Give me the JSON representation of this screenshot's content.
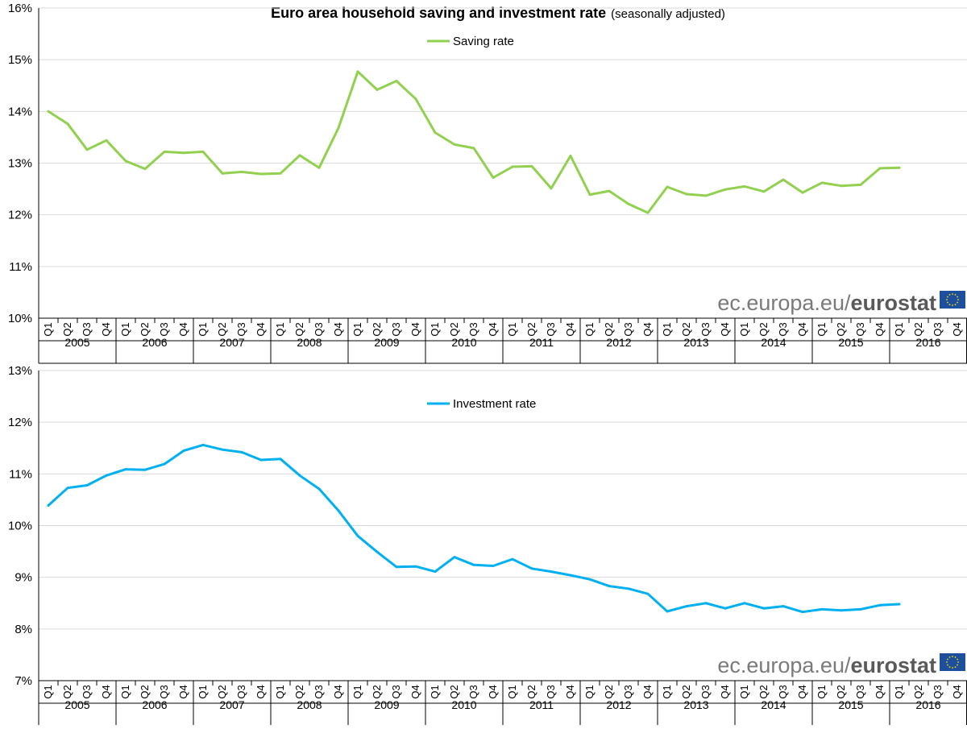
{
  "title": "Euro area household saving and investment rate",
  "subtitle": "(seasonally adjusted)",
  "watermark": {
    "prefix": "ec.europa.eu/",
    "brand": "eurostat"
  },
  "colors": {
    "saving": "#92d050",
    "investment": "#00b0f0",
    "grid": "#d9d9d9",
    "eu_blue": "#1d4f9c",
    "eu_star": "#ffdd00"
  },
  "chart_data": [
    {
      "type": "line",
      "legend_position": "top-center",
      "grid": true,
      "ylim": [
        10,
        16
      ],
      "ytick_labels": [
        "10%",
        "11%",
        "12%",
        "13%",
        "14%",
        "15%",
        "16%"
      ],
      "quarters": [
        "Q1",
        "Q2",
        "Q3",
        "Q4"
      ],
      "years": [
        "2005",
        "2006",
        "2007",
        "2008",
        "2009",
        "2010",
        "2011",
        "2012",
        "2013",
        "2014",
        "2015",
        "2016"
      ],
      "series": [
        {
          "name": "Saving rate",
          "values": [
            14.0,
            13.76,
            13.26,
            13.44,
            13.04,
            12.89,
            13.22,
            13.2,
            13.22,
            12.8,
            12.83,
            12.79,
            12.8,
            13.15,
            12.91,
            13.68,
            14.77,
            14.42,
            14.59,
            14.24,
            13.59,
            13.36,
            13.29,
            12.72,
            12.93,
            12.94,
            12.51,
            13.14,
            12.39,
            12.46,
            12.21,
            12.04,
            12.54,
            12.4,
            12.37,
            12.49,
            12.55,
            12.45,
            12.68,
            12.43,
            12.62,
            12.56,
            12.58,
            12.9,
            12.91
          ]
        }
      ]
    },
    {
      "type": "line",
      "legend_position": "top-center",
      "grid": true,
      "ylim": [
        7,
        13
      ],
      "ytick_labels": [
        "7%",
        "8%",
        "9%",
        "10%",
        "11%",
        "12%",
        "13%"
      ],
      "quarters": [
        "Q1",
        "Q2",
        "Q3",
        "Q4"
      ],
      "years": [
        "2005",
        "2006",
        "2007",
        "2008",
        "2009",
        "2010",
        "2011",
        "2012",
        "2013",
        "2014",
        "2015",
        "2016"
      ],
      "series": [
        {
          "name": "Investment rate",
          "values": [
            10.39,
            10.73,
            10.78,
            10.97,
            11.09,
            11.08,
            11.19,
            11.45,
            11.56,
            11.47,
            11.42,
            11.27,
            11.29,
            10.97,
            10.71,
            10.29,
            9.8,
            9.49,
            9.2,
            9.21,
            9.11,
            9.39,
            9.24,
            9.22,
            9.35,
            9.17,
            9.11,
            9.04,
            8.96,
            8.83,
            8.78,
            8.68,
            8.34,
            8.44,
            8.5,
            8.4,
            8.5,
            8.4,
            8.44,
            8.33,
            8.38,
            8.36,
            8.38,
            8.46,
            8.48
          ]
        }
      ]
    }
  ]
}
